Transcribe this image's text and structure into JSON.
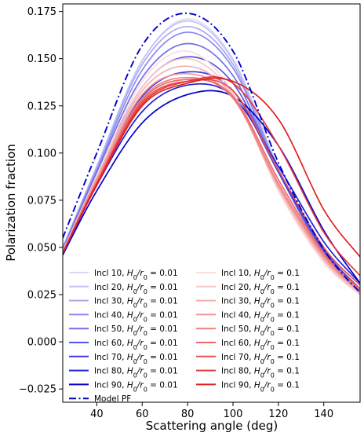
{
  "chart_data": {
    "type": "line",
    "xlabel": "Scattering angle (deg)",
    "ylabel": "Polarization fraction",
    "xlim": [
      25,
      156
    ],
    "ylim": [
      -0.032,
      0.179
    ],
    "x_ticks": [
      40,
      60,
      80,
      100,
      120,
      140
    ],
    "x_tick_labels": [
      "40",
      "60",
      "80",
      "100",
      "120",
      "140"
    ],
    "y_ticks": [
      -0.025,
      0,
      0.025,
      0.05,
      0.075,
      0.1,
      0.125,
      0.15,
      0.175
    ],
    "y_tick_labels": [
      "−0.025",
      "0.000",
      "0.025",
      "0.050",
      "0.075",
      "0.100",
      "0.125",
      "0.150",
      "0.175"
    ],
    "grid": false,
    "legend_position": "lower-left",
    "x": [
      25,
      40,
      60,
      80,
      100,
      120,
      140,
      156
    ],
    "series": [
      {
        "name": "Incl 10, H0/r0 = 0.01",
        "label_main": "Incl 10, ",
        "label_sub": "0.01",
        "color": "#d9d9fb",
        "style": "solid",
        "values": [
          0.05,
          0.093,
          0.149,
          0.171,
          0.15,
          0.092,
          0.047,
          0.026
        ]
      },
      {
        "name": "Incl 20, H0/r0 = 0.01",
        "label_main": "Incl 20, ",
        "label_sub": "0.01",
        "color": "#c2c2f7",
        "style": "solid",
        "values": [
          0.05,
          0.093,
          0.149,
          0.17,
          0.149,
          0.092,
          0.047,
          0.026
        ]
      },
      {
        "name": "Incl 30, H0/r0 = 0.01",
        "label_main": "Incl 30, ",
        "label_sub": "0.01",
        "color": "#a8a8f2",
        "style": "solid",
        "values": [
          0.05,
          0.092,
          0.147,
          0.167,
          0.147,
          0.091,
          0.047,
          0.026
        ]
      },
      {
        "name": "Incl 40, H0/r0 = 0.01",
        "label_main": "Incl 40, ",
        "label_sub": "0.01",
        "color": "#8c8cee",
        "style": "solid",
        "values": [
          0.049,
          0.091,
          0.144,
          0.164,
          0.145,
          0.091,
          0.047,
          0.026
        ]
      },
      {
        "name": "Incl 50, H0/r0 = 0.01",
        "label_main": "Incl 50, ",
        "label_sub": "0.01",
        "color": "#7070e8",
        "style": "solid",
        "values": [
          0.049,
          0.09,
          0.14,
          0.158,
          0.141,
          0.09,
          0.047,
          0.026
        ]
      },
      {
        "name": "Incl 60, H0/r0 = 0.01",
        "label_main": "Incl 60, ",
        "label_sub": "0.01",
        "color": "#5555e2",
        "style": "solid",
        "values": [
          0.048,
          0.088,
          0.135,
          0.151,
          0.137,
          0.09,
          0.048,
          0.027
        ]
      },
      {
        "name": "Incl 70, H0/r0 = 0.01",
        "label_main": "Incl 70, ",
        "label_sub": "0.01",
        "color": "#3a3add",
        "style": "solid",
        "values": [
          0.047,
          0.086,
          0.13,
          0.143,
          0.133,
          0.09,
          0.049,
          0.028
        ]
      },
      {
        "name": "Incl 80, H0/r0 = 0.01",
        "label_main": "Incl 80, ",
        "label_sub": "0.01",
        "color": "#1f1fd8",
        "style": "solid",
        "values": [
          0.046,
          0.083,
          0.122,
          0.136,
          0.13,
          0.093,
          0.053,
          0.031
        ]
      },
      {
        "name": "Incl 90, H0/r0 = 0.01",
        "label_main": "Incl 90, ",
        "label_sub": "0.01",
        "color": "#0000cc",
        "style": "solid",
        "values": [
          0.046,
          0.08,
          0.116,
          0.131,
          0.13,
          0.104,
          0.059,
          0.031
        ]
      },
      {
        "name": "Incl 10, H0/r0 = 0.1",
        "label_main": "Incl 10, ",
        "label_sub": "0.1",
        "color": "#fbdede",
        "style": "solid",
        "values": [
          0.048,
          0.088,
          0.138,
          0.154,
          0.132,
          0.08,
          0.042,
          0.025
        ]
      },
      {
        "name": "Incl 20, H0/r0 = 0.1",
        "label_main": "Incl 20, ",
        "label_sub": "0.1",
        "color": "#f8c6c6",
        "style": "solid",
        "values": [
          0.048,
          0.087,
          0.135,
          0.15,
          0.131,
          0.081,
          0.043,
          0.025
        ]
      },
      {
        "name": "Incl 30, H0/r0 = 0.1",
        "label_main": "Incl 30, ",
        "label_sub": "0.1",
        "color": "#f5aeae",
        "style": "solid",
        "values": [
          0.048,
          0.087,
          0.133,
          0.146,
          0.13,
          0.082,
          0.044,
          0.026
        ]
      },
      {
        "name": "Incl 40, H0/r0 = 0.1",
        "label_main": "Incl 40, ",
        "label_sub": "0.1",
        "color": "#f29797",
        "style": "solid",
        "values": [
          0.047,
          0.086,
          0.131,
          0.142,
          0.129,
          0.083,
          0.045,
          0.026
        ]
      },
      {
        "name": "Incl 50, H0/r0 = 0.1",
        "label_main": "Incl 50, ",
        "label_sub": "0.1",
        "color": "#ef8080",
        "style": "solid",
        "values": [
          0.047,
          0.085,
          0.129,
          0.14,
          0.129,
          0.084,
          0.046,
          0.027
        ]
      },
      {
        "name": "Incl 60, H0/r0 = 0.1",
        "label_main": "Incl 60, ",
        "label_sub": "0.1",
        "color": "#ec6868",
        "style": "solid",
        "values": [
          0.047,
          0.084,
          0.128,
          0.139,
          0.13,
          0.086,
          0.047,
          0.028
        ]
      },
      {
        "name": "Incl 70, H0/r0 = 0.1",
        "label_main": "Incl 70, ",
        "label_sub": "0.1",
        "color": "#e85050",
        "style": "solid",
        "values": [
          0.047,
          0.084,
          0.127,
          0.138,
          0.133,
          0.091,
          0.05,
          0.03
        ]
      },
      {
        "name": "Incl 80, H0/r0 = 0.1",
        "label_main": "Incl 80, ",
        "label_sub": "0.1",
        "color": "#e53838",
        "style": "solid",
        "values": [
          0.047,
          0.084,
          0.126,
          0.138,
          0.137,
          0.104,
          0.058,
          0.035
        ]
      },
      {
        "name": "Incl 90, H0/r0 = 0.1",
        "label_main": "Incl 90, ",
        "label_sub": "0.1",
        "color": "#e02020",
        "style": "solid",
        "values": [
          0.047,
          0.083,
          0.125,
          0.137,
          0.138,
          0.118,
          0.07,
          0.045
        ]
      },
      {
        "name": "Model PF",
        "label_main": "Model PF",
        "label_sub": "",
        "color": "#0000cc",
        "style": "dashdot",
        "values": [
          0.055,
          0.1,
          0.157,
          0.174,
          0.154,
          0.095,
          0.049,
          0.026
        ]
      }
    ]
  }
}
